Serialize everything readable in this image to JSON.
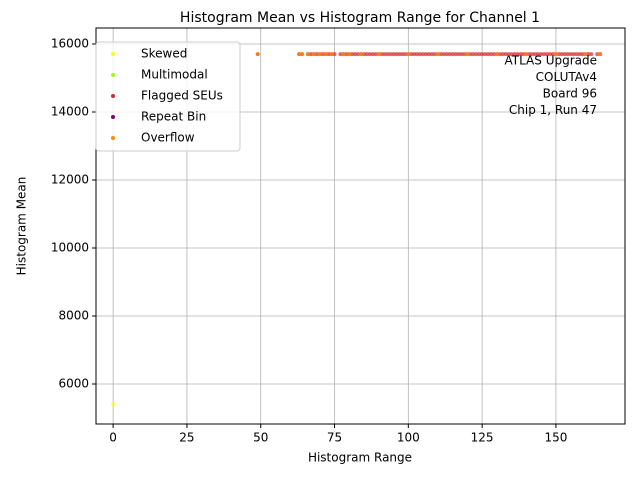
{
  "chart_data": {
    "type": "scatter",
    "title": "Histogram Mean vs Histogram Range for Channel 1",
    "x_label": "Histogram Range",
    "y_label": "Histogram Mean",
    "xlim": [
      -5.8,
      173.4
    ],
    "ylim": [
      4824,
      16470
    ],
    "xticks": [
      0,
      25,
      50,
      75,
      100,
      125,
      150
    ],
    "yticks": [
      6000,
      8000,
      10000,
      12000,
      14000,
      16000
    ],
    "grid": true,
    "legend_position": "upper left",
    "annotation": [
      "ATLAS Upgrade",
      "COLUTAv4",
      "Board 96",
      "Chip 1, Run 47"
    ],
    "series": [
      {
        "name": "Skewed",
        "color": "#ffff00",
        "x": [
          0
        ],
        "y": [
          5400
        ]
      },
      {
        "name": "Multimodal",
        "color": "#9aff00",
        "x": [],
        "y": []
      },
      {
        "name": "Flagged SEUs",
        "color": "#d62728",
        "x": [
          49,
          63,
          64,
          66,
          67,
          68,
          69,
          70,
          71,
          72,
          73,
          74,
          75,
          77,
          78,
          79,
          80,
          81,
          82,
          83,
          84,
          85,
          86,
          87,
          88,
          89,
          90,
          91,
          92,
          93,
          94,
          95,
          96,
          97,
          98,
          99,
          100,
          101,
          102,
          103,
          104,
          105,
          106,
          107,
          108,
          109,
          110,
          111,
          112,
          113,
          114,
          115,
          116,
          117,
          118,
          119,
          120,
          121,
          122,
          123,
          124,
          125,
          126,
          127,
          128,
          129,
          130,
          131,
          132,
          133,
          134,
          135,
          136,
          137,
          138,
          139,
          140,
          141,
          142,
          143,
          144,
          145,
          146,
          147,
          148,
          149,
          150,
          151,
          152,
          153,
          154,
          155,
          156,
          157,
          158,
          159,
          160,
          161,
          162,
          164,
          165
        ],
        "y": [
          15700,
          15700,
          15700,
          15700,
          15700,
          15700,
          15700,
          15700,
          15700,
          15700,
          15700,
          15700,
          15700,
          15700,
          15700,
          15700,
          15700,
          15700,
          15700,
          15700,
          15700,
          15700,
          15700,
          15700,
          15700,
          15700,
          15700,
          15700,
          15700,
          15700,
          15700,
          15700,
          15700,
          15700,
          15700,
          15700,
          15700,
          15700,
          15700,
          15700,
          15700,
          15700,
          15700,
          15700,
          15700,
          15700,
          15700,
          15700,
          15700,
          15700,
          15700,
          15700,
          15700,
          15700,
          15700,
          15700,
          15700,
          15700,
          15700,
          15700,
          15700,
          15700,
          15700,
          15700,
          15700,
          15700,
          15700,
          15700,
          15700,
          15700,
          15700,
          15700,
          15700,
          15700,
          15700,
          15700,
          15700,
          15700,
          15700,
          15700,
          15700,
          15700,
          15700,
          15700,
          15700,
          15700,
          15700,
          15700,
          15700,
          15700,
          15700,
          15700,
          15700,
          15700,
          15700,
          15700,
          15700,
          15700,
          15700,
          15700,
          15700
        ]
      },
      {
        "name": "Repeat Bin",
        "color": "#800080",
        "x": [],
        "y": []
      },
      {
        "name": "Overflow",
        "color": "#ff8c00",
        "x": [
          49,
          63,
          64,
          66,
          68,
          70,
          72,
          74,
          78,
          80,
          84,
          90,
          100,
          110,
          120,
          130,
          140,
          150,
          160,
          165
        ],
        "y": [
          15700,
          15700,
          15700,
          15700,
          15700,
          15700,
          15700,
          15700,
          15700,
          15700,
          15700,
          15700,
          15700,
          15700,
          15700,
          15700,
          15700,
          15700,
          15700,
          15700
        ]
      }
    ]
  }
}
